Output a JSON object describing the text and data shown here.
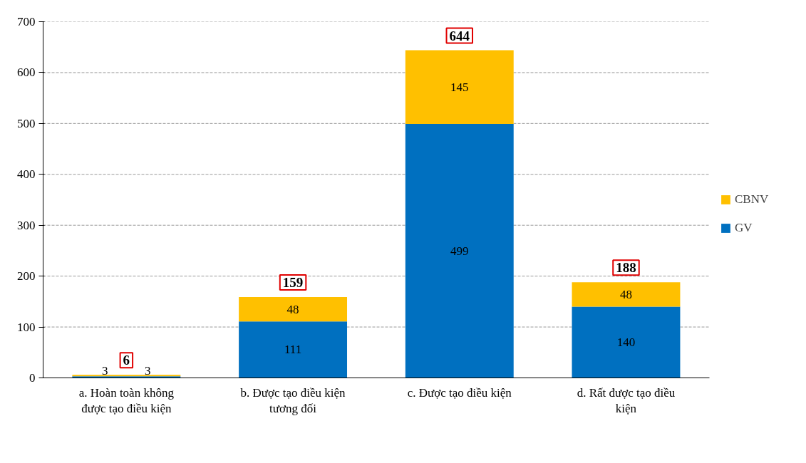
{
  "chart_data": {
    "type": "bar",
    "stacked": true,
    "categories": [
      "a. Hoàn toàn không được tạo điều kiện",
      "b. Được tạo điều kiện tương đối",
      "c. Được tạo điều kiện",
      "d. Rất được tạo điều kiện"
    ],
    "series": [
      {
        "name": "GV",
        "color": "#0070c0",
        "values": [
          3,
          111,
          499,
          140
        ]
      },
      {
        "name": "CBNV",
        "color": "#ffc000",
        "values": [
          3,
          48,
          145,
          48
        ]
      }
    ],
    "totals": [
      "6",
      "159",
      "644",
      "188"
    ],
    "data_labels": true,
    "ylim": [
      0,
      700
    ],
    "yticks": [
      0,
      100,
      200,
      300,
      400,
      500,
      600,
      700
    ],
    "grid": "y",
    "legend": "right"
  }
}
